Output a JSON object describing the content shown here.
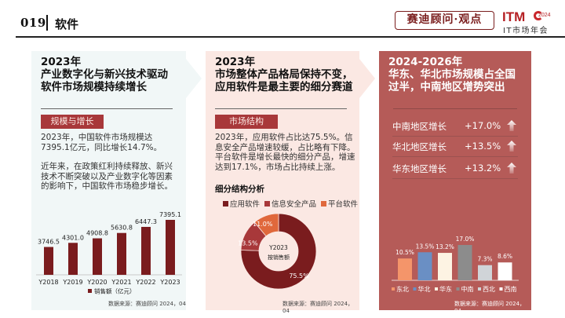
{
  "header": {
    "page_number": "019",
    "section_title": "软件",
    "brand_label": "赛迪顾问·观点",
    "logo": {
      "main": "ITM",
      "year": "2024",
      "sub": "IT市场年会"
    }
  },
  "colors": {
    "accent_dark": "#7a1c1e",
    "tag_bg": "#a8383a",
    "panel_left_bg": "#f1f7f7",
    "panel_mid_bg": "#fbe8e3",
    "panel_right_bg": "#b55b58"
  },
  "panel_left": {
    "title_year": "2023年",
    "title_line1": "产业数字化与新兴技术驱动",
    "title_line2": "软件市场规模持续增长",
    "tag": "规模与增长",
    "para1_line1": "2023年，中国软件市场规模达",
    "para1_line2": "7395.1亿元，同比增长14.7%。",
    "para2_line1": "近年来，在政策红利持续释放、新兴",
    "para2_line2": "技术不断突破以及产业数字化等因素",
    "para2_line3": "的影响下，中国软件市场稳步增长。",
    "source": "数据来源：赛迪顾问 2024，04"
  },
  "panel_mid": {
    "title_year": "2023年",
    "title_line1": "市场整体产品格局保持不变，",
    "title_line2": "应用软件是最主要的细分赛道",
    "tag": "市场结构",
    "para_line1": "2023年，应用软件占比达75.5%。信",
    "para_line2": "息安全产品增速较缓，占比略有下降。",
    "para_line3": "平台软件是增长最快的细分产品，增速",
    "para_line4": "达到17.1%，市场占比持续上涨。",
    "sub_header": "细分结构分析",
    "source": "数据来源：赛迪顾问 2024，04"
  },
  "panel_right": {
    "title_year": "2024-2026年",
    "title_line1": "华东、华北市场规模占全国",
    "title_line2": "过半，中南地区增势突出",
    "growth": [
      {
        "label": "中南地区增长",
        "value": "+17.0%",
        "icon": "arrow-up-icon"
      },
      {
        "label": "华北地区增长",
        "value": "+13.5%",
        "icon": "arrow-up-icon"
      },
      {
        "label": "华东地区增长",
        "value": "+13.2%",
        "icon": "arrow-up-icon"
      }
    ],
    "source": "数据来源：赛迪顾问 2024，04"
  },
  "chart_data": [
    {
      "type": "bar",
      "title": "",
      "categories": [
        "Y2018",
        "Y2019",
        "Y2020",
        "Y2021",
        "Y2022",
        "Y2023"
      ],
      "values": [
        3746.5,
        4301.0,
        4908.8,
        5630.8,
        6447.3,
        7395.1
      ],
      "labels": [
        "3746.5",
        "4301.0",
        "4908.8",
        "5630.8",
        "6447.3",
        "7395.1"
      ],
      "series_name": "销售额（亿元）",
      "color": "#7a1c1e",
      "xlabel": "",
      "ylabel": "",
      "ylim": [
        0,
        7395.1
      ],
      "grid": false,
      "legend": "bottom"
    },
    {
      "type": "pie",
      "donut": true,
      "center_line1": "Y2023",
      "center_line2": "按销售额",
      "slices": [
        {
          "name": "应用软件",
          "value": 75.5,
          "label": "75.5%",
          "color": "#7a1c1e"
        },
        {
          "name": "信息安全产品",
          "value": 13.5,
          "label": "13.5%",
          "color": "#a8383a"
        },
        {
          "name": "平台软件",
          "value": 11.0,
          "label": "11.0%",
          "color": "#e0683c"
        }
      ],
      "legend": "top"
    },
    {
      "type": "bar",
      "categories": [
        "东北",
        "华北",
        "华东",
        "中南",
        "西北",
        "西南"
      ],
      "values": [
        10.5,
        13.5,
        13.2,
        17.0,
        7.3,
        8.6
      ],
      "labels": [
        "10.5%",
        "13.5%",
        "13.2%",
        "17.0%",
        "7.3%",
        "8.6%"
      ],
      "colors": [
        "#f4956a",
        "#6a8fc4",
        "#fdf3e3",
        "#8c8c8c",
        "#d0d4d8",
        "#ffffff"
      ],
      "ylim": [
        0,
        17.0
      ],
      "grid": false,
      "legend": "bottom"
    }
  ]
}
